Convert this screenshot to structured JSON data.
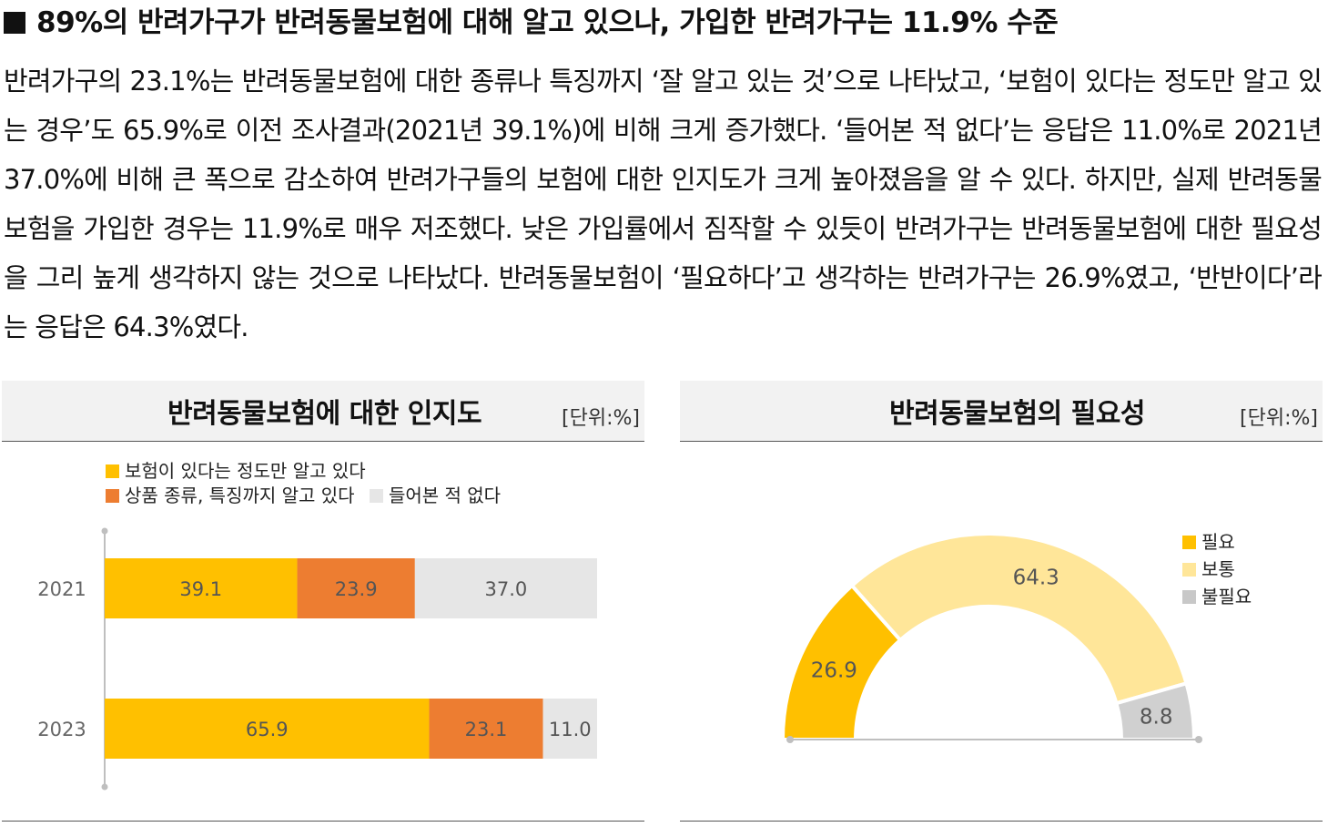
{
  "header": {
    "title": "89%의 반려가구가 반려동물보험에 대해 알고 있으나, 가입한 반려가구는 11.9% 수준",
    "paragraph": "반려가구의 23.1%는 반려동물보험에 대한 종류나 특징까지 ‘잘 알고 있는 것’으로 나타났고, ‘보험이 있다는 정도만 알고 있는 경우’도 65.9%로 이전 조사결과(2021년 39.1%)에 비해 크게 증가했다. ‘들어본 적 없다’는 응답은 11.0%로 2021년 37.0%에 비해 큰 폭으로 감소하여 반려가구들의 보험에 대한 인지도가 크게 높아졌음을 알 수 있다. 하지만, 실제 반려동물보험을 가입한 경우는 11.9%로 매우 저조했다. 낮은 가입률에서 짐작할 수 있듯이 반려가구는 반려동물보험에 대한 필요성을 그리 높게 생각하지 않는 것으로 나타났다. 반려동물보험이 ‘필요하다’고 생각하는 반려가구는 26.9%였고, ‘반반이다’라는 응답은 64.3%였다."
  },
  "chart_data": [
    {
      "type": "bar",
      "orientation": "horizontal",
      "stacked": true,
      "title": "반려동물보험에 대한 인지도",
      "unit": "[단위:%]",
      "categories": [
        "2021",
        "2023"
      ],
      "series": [
        {
          "name": "보험이 있다는 정도만 알고 있다",
          "values": [
            39.1,
            65.9
          ],
          "color": "#FFC000"
        },
        {
          "name": "상품 종류, 특징까지 알고 있다",
          "values": [
            23.9,
            23.1
          ],
          "color": "#ED7D31"
        },
        {
          "name": "들어본 적 없다",
          "values": [
            37.0,
            11.0
          ],
          "color": "#E6E6E6"
        }
      ],
      "labels": [
        [
          "39.1",
          "23.9",
          "37.0"
        ],
        [
          "65.9",
          "23.1",
          "11.0"
        ]
      ],
      "xlim": [
        0,
        100
      ],
      "grid": false,
      "legend_position": "top-left"
    },
    {
      "type": "pie",
      "variant": "half-donut",
      "title": "반려동물보험의 필요성",
      "unit": "[단위:%]",
      "categories": [
        "필요",
        "보통",
        "불필요"
      ],
      "values": [
        26.9,
        64.3,
        8.8
      ],
      "labels": [
        "26.9",
        "64.3",
        "8.8"
      ],
      "colors": [
        "#FFC000",
        "#FFE699",
        "#D0D0D0"
      ],
      "legend_position": "top-right"
    }
  ]
}
